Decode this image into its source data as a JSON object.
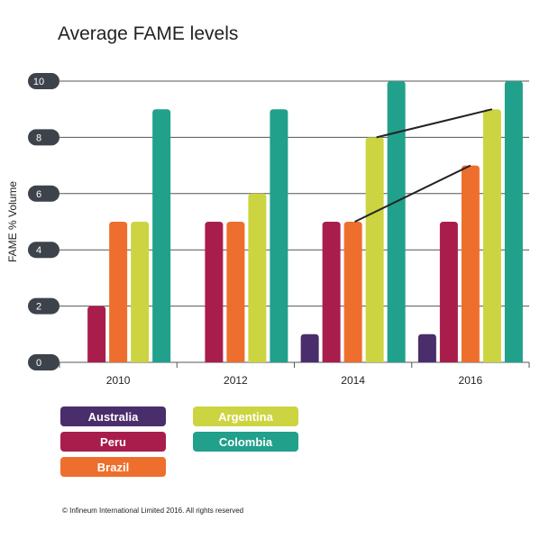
{
  "chart_data": {
    "type": "bar",
    "title": "Average FAME levels",
    "xlabel": "",
    "ylabel": "FAME % Volume",
    "ylim": [
      0,
      10
    ],
    "yticks": [
      0,
      2,
      4,
      6,
      8,
      10
    ],
    "grid": true,
    "legend_position": "bottom-left",
    "categories": [
      "2010",
      "2012",
      "2014",
      "2016"
    ],
    "series": [
      {
        "name": "Australia",
        "color": "#4a2d6b",
        "values": [
          0,
          0,
          1,
          1
        ]
      },
      {
        "name": "Peru",
        "color": "#a91d4d",
        "values": [
          2,
          5,
          5,
          5
        ]
      },
      {
        "name": "Brazil",
        "color": "#ee6f2d",
        "values": [
          5,
          5,
          5,
          7
        ]
      },
      {
        "name": "Argentina",
        "color": "#ccd541",
        "values": [
          5,
          6,
          8,
          9
        ]
      },
      {
        "name": "Colombia",
        "color": "#21a08b",
        "values": [
          9,
          9,
          10,
          10
        ]
      }
    ],
    "annotations": [
      {
        "type": "trend-line",
        "from": {
          "series": "Brazil",
          "category": "2014"
        },
        "to": {
          "series": "Brazil",
          "category": "2016"
        }
      },
      {
        "type": "trend-line",
        "from": {
          "series": "Argentina",
          "category": "2014"
        },
        "to": {
          "series": "Argentina",
          "category": "2016"
        }
      }
    ]
  },
  "footer": {
    "copyright": "© Infineum International Limited 2016. All rights reserved"
  }
}
